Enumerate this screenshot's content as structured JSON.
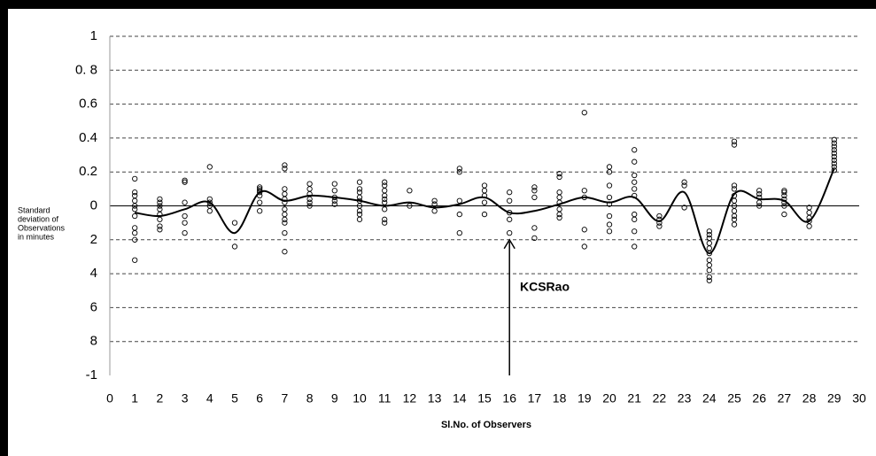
{
  "chart_data": {
    "type": "scatter",
    "ylabel": [
      "Standard",
      "deviation of",
      "Observations",
      "in minutes"
    ],
    "xlabel": "Sl.No. of Observers",
    "annotation": {
      "text": "KCSRao",
      "x": 16,
      "y": -0.2
    },
    "xlim": [
      0,
      30
    ],
    "xticks": [
      0,
      1,
      2,
      3,
      4,
      5,
      6,
      7,
      8,
      9,
      10,
      11,
      12,
      13,
      14,
      15,
      16,
      17,
      18,
      19,
      20,
      21,
      22,
      23,
      24,
      25,
      26,
      27,
      28,
      29,
      30
    ],
    "ylim": [
      -1,
      1
    ],
    "yticks": [
      1,
      {
        "value": 0.8,
        "label": "0. 8"
      },
      0.6,
      0.4,
      0.2,
      0,
      {
        "value": -0.2,
        "label": "2"
      },
      {
        "value": -0.4,
        "label": "4"
      },
      {
        "value": -0.6,
        "label": "6"
      },
      {
        "value": -0.8,
        "label": "8"
      },
      -1
    ],
    "grid": true,
    "series": [
      {
        "type": "scatter",
        "color": "#000000",
        "x": [
          1,
          1,
          1,
          1,
          1,
          1,
          1,
          1,
          1,
          1,
          1,
          2,
          2,
          2,
          2,
          2,
          2,
          2,
          2,
          3,
          3,
          3,
          3,
          3,
          3,
          4,
          4,
          4,
          4,
          4,
          5,
          5,
          6,
          6,
          6,
          6,
          6,
          6,
          6,
          7,
          7,
          7,
          7,
          7,
          7,
          7,
          7,
          7,
          7,
          7,
          7,
          8,
          8,
          8,
          8,
          8,
          8,
          9,
          9,
          9,
          9,
          9,
          10,
          10,
          10,
          10,
          10,
          10,
          10,
          10,
          10,
          11,
          11,
          11,
          11,
          11,
          11,
          11,
          11,
          11,
          12,
          12,
          13,
          13,
          13,
          14,
          14,
          14,
          14,
          14,
          15,
          15,
          15,
          15,
          15,
          16,
          16,
          16,
          16,
          16,
          17,
          17,
          17,
          17,
          17,
          18,
          18,
          18,
          18,
          18,
          18,
          18,
          18,
          19,
          19,
          19,
          19,
          19,
          20,
          20,
          20,
          20,
          20,
          20,
          20,
          20,
          21,
          21,
          21,
          21,
          21,
          21,
          21,
          21,
          21,
          21,
          22,
          22,
          22,
          22,
          23,
          23,
          23,
          24,
          24,
          24,
          24,
          24,
          24,
          24,
          24,
          24,
          24,
          24,
          25,
          25,
          25,
          25,
          25,
          25,
          25,
          25,
          25,
          25,
          25,
          26,
          26,
          26,
          26,
          26,
          27,
          27,
          27,
          27,
          27,
          27,
          27,
          28,
          28,
          28,
          28,
          28,
          29,
          29,
          29,
          29,
          29,
          29,
          29,
          29,
          29,
          29
        ],
        "values": [
          0.16,
          0.08,
          0.06,
          0.03,
          0,
          -0.02,
          -0.06,
          -0.13,
          -0.16,
          -0.2,
          -0.32,
          0.04,
          0.02,
          0,
          -0.02,
          -0.05,
          -0.08,
          -0.12,
          -0.14,
          0.15,
          0.14,
          0.02,
          -0.06,
          -0.1,
          -0.16,
          0.23,
          0.04,
          0.02,
          0,
          -0.03,
          -0.1,
          -0.24,
          0.11,
          0.1,
          0.09,
          0.08,
          0.06,
          0.02,
          -0.03,
          0.24,
          0.22,
          0.1,
          0.07,
          0.04,
          0.02,
          -0.02,
          -0.05,
          -0.08,
          -0.1,
          -0.16,
          -0.27,
          0.13,
          0.1,
          0.07,
          0.04,
          0.02,
          0,
          0.13,
          0.09,
          0.05,
          0.03,
          0.01,
          0.14,
          0.1,
          0.08,
          0.05,
          0.03,
          0,
          -0.03,
          -0.05,
          -0.08,
          0.14,
          0.12,
          0.09,
          0.06,
          0.04,
          0.02,
          -0.02,
          -0.08,
          -0.1,
          0.09,
          0,
          0.03,
          0.01,
          -0.03,
          0.22,
          0.2,
          0.03,
          -0.05,
          -0.16,
          0.12,
          0.09,
          0.06,
          0.02,
          -0.05,
          0.08,
          0.03,
          -0.04,
          -0.08,
          -0.16,
          0.11,
          0.09,
          0.05,
          -0.13,
          -0.19,
          0.19,
          0.17,
          0.08,
          0.05,
          0.02,
          -0.02,
          -0.05,
          -0.07,
          0.55,
          0.09,
          0.05,
          -0.14,
          -0.24,
          0.23,
          0.2,
          0.12,
          0.05,
          0.01,
          -0.06,
          -0.11,
          -0.15,
          0.33,
          0.26,
          0.18,
          0.14,
          0.1,
          0.06,
          -0.05,
          -0.08,
          -0.15,
          -0.24,
          -0.06,
          -0.08,
          -0.1,
          -0.12,
          0.14,
          0.12,
          -0.01,
          -0.15,
          -0.17,
          -0.19,
          -0.22,
          -0.25,
          -0.28,
          -0.32,
          -0.35,
          -0.38,
          -0.42,
          -0.44,
          0.38,
          0.36,
          0.12,
          0.1,
          0.06,
          0.03,
          0,
          -0.03,
          -0.06,
          -0.08,
          -0.11,
          0.09,
          0.07,
          0.05,
          0.02,
          0,
          0.09,
          0.08,
          0.06,
          0.04,
          0.02,
          0,
          -0.05,
          -0.01,
          -0.04,
          -0.07,
          -0.09,
          -0.12,
          0.39,
          0.37,
          0.35,
          0.33,
          0.31,
          0.29,
          0.27,
          0.25,
          0.23,
          0.21
        ]
      },
      {
        "type": "line",
        "color": "#000000",
        "x": [
          1,
          2,
          3,
          4,
          5,
          6,
          7,
          8,
          9,
          10,
          11,
          12,
          13,
          14,
          15,
          16,
          17,
          18,
          19,
          20,
          21,
          22,
          23,
          24,
          25,
          26,
          27,
          28,
          29
        ],
        "values": [
          -0.04,
          -0.06,
          -0.02,
          0.02,
          -0.16,
          0.08,
          0.03,
          0.06,
          0.05,
          0.03,
          0,
          0.02,
          -0.01,
          0.01,
          0.05,
          -0.04,
          -0.03,
          0.01,
          0.05,
          0.02,
          0.05,
          -0.09,
          0.08,
          -0.28,
          0.07,
          0.04,
          0.03,
          -0.09,
          0.22
        ]
      }
    ]
  }
}
